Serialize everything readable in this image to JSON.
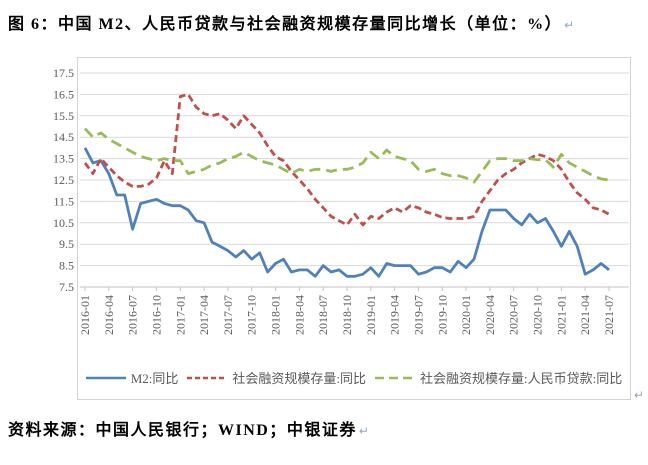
{
  "title": "图 6：中国 M2、人民币贷款与社会融资规模存量同比增长（单位：%）",
  "paragraph_mark": "↵",
  "source_note": "资料来源：中国人民银行；WIND；中银证券",
  "colors": {
    "m2_line": "#4F81BD",
    "tsf_line": "#C0504D",
    "loans_line": "#9BBB59",
    "gridline": "#D9D9D9",
    "axis_text": "#595959",
    "chart_border": "#D3D3D3"
  },
  "chart_data": {
    "type": "line",
    "title": "",
    "xlabel": "",
    "ylabel": "",
    "ylim": [
      7.5,
      17.5
    ],
    "ytick_step": 1,
    "grid": "horizontal",
    "legend_position": "bottom",
    "x": [
      "2016-01",
      "2016-02",
      "2016-03",
      "2016-04",
      "2016-05",
      "2016-06",
      "2016-07",
      "2016-08",
      "2016-09",
      "2016-10",
      "2016-11",
      "2016-12",
      "2017-01",
      "2017-02",
      "2017-03",
      "2017-04",
      "2017-05",
      "2017-06",
      "2017-07",
      "2017-08",
      "2017-09",
      "2017-10",
      "2017-11",
      "2017-12",
      "2018-01",
      "2018-02",
      "2018-03",
      "2018-04",
      "2018-05",
      "2018-06",
      "2018-07",
      "2018-08",
      "2018-09",
      "2018-10",
      "2018-11",
      "2018-12",
      "2019-01",
      "2019-02",
      "2019-03",
      "2019-04",
      "2019-05",
      "2019-06",
      "2019-07",
      "2019-08",
      "2019-09",
      "2019-10",
      "2019-11",
      "2019-12",
      "2020-01",
      "2020-02",
      "2020-03",
      "2020-04",
      "2020-05",
      "2020-06",
      "2020-07",
      "2020-08",
      "2020-09",
      "2020-10",
      "2020-11",
      "2020-12",
      "2021-01",
      "2021-02",
      "2021-03",
      "2021-04",
      "2021-05",
      "2021-06",
      "2021-07"
    ],
    "x_tick_labels": [
      "2016-01",
      "2016-04",
      "2016-07",
      "2016-10",
      "2017-01",
      "2017-04",
      "2017-07",
      "2017-10",
      "2018-01",
      "2018-04",
      "2018-07",
      "2018-10",
      "2019-01",
      "2019-04",
      "2019-07",
      "2019-10",
      "2020-01",
      "2020-04",
      "2020-07",
      "2020-10",
      "2021-01",
      "2021-04",
      "2021-07"
    ],
    "x_tick_every": 3,
    "series": [
      {
        "name": "M2:同比",
        "color": "#4F81BD",
        "style": "solid",
        "values": [
          14.0,
          13.3,
          13.4,
          12.8,
          11.8,
          11.8,
          10.2,
          11.4,
          11.5,
          11.6,
          11.4,
          11.3,
          11.3,
          11.1,
          10.6,
          10.5,
          9.6,
          9.4,
          9.2,
          8.9,
          9.2,
          8.8,
          9.1,
          8.2,
          8.6,
          8.8,
          8.2,
          8.3,
          8.3,
          8.0,
          8.5,
          8.2,
          8.3,
          8.0,
          8.0,
          8.1,
          8.4,
          8.0,
          8.6,
          8.5,
          8.5,
          8.5,
          8.1,
          8.2,
          8.4,
          8.4,
          8.2,
          8.7,
          8.4,
          8.8,
          10.1,
          11.1,
          11.1,
          11.1,
          10.7,
          10.4,
          10.9,
          10.5,
          10.7,
          10.1,
          9.4,
          10.1,
          9.4,
          8.1,
          8.3,
          8.6,
          8.3
        ]
      },
      {
        "name": "社会融资规模存量:同比",
        "color": "#C0504D",
        "style": "dashed",
        "values": [
          13.3,
          12.8,
          13.5,
          13.1,
          12.7,
          12.4,
          12.2,
          12.2,
          12.3,
          12.6,
          13.4,
          12.8,
          16.4,
          16.5,
          15.9,
          15.6,
          15.5,
          15.6,
          15.3,
          14.9,
          15.5,
          15.1,
          14.7,
          14.1,
          13.6,
          13.4,
          12.9,
          12.5,
          12.1,
          11.6,
          11.2,
          10.8,
          10.6,
          10.4,
          10.9,
          10.4,
          10.8,
          10.7,
          11.0,
          11.2,
          11.0,
          11.3,
          11.2,
          11.0,
          10.9,
          10.75,
          10.7,
          10.7,
          10.7,
          10.8,
          11.5,
          12.0,
          12.5,
          12.8,
          13.0,
          13.3,
          13.5,
          13.7,
          13.6,
          13.4,
          13.0,
          12.4,
          11.9,
          11.6,
          11.2,
          11.1,
          10.9
        ]
      },
      {
        "name": "社会融资规模存量:人民币贷款:同比",
        "color": "#9BBB59",
        "style": "long-dashed",
        "values": [
          14.9,
          14.5,
          14.7,
          14.4,
          14.2,
          14.0,
          13.8,
          13.6,
          13.5,
          13.4,
          13.5,
          13.4,
          13.4,
          12.8,
          12.9,
          13.0,
          13.2,
          13.3,
          13.5,
          13.6,
          13.8,
          13.6,
          13.4,
          13.3,
          13.2,
          13.0,
          12.8,
          13.0,
          12.9,
          13.0,
          13.0,
          12.9,
          13.0,
          13.0,
          13.1,
          13.3,
          13.8,
          13.5,
          13.9,
          13.6,
          13.5,
          13.4,
          13.0,
          12.9,
          13.0,
          12.8,
          12.7,
          12.7,
          12.6,
          12.4,
          12.9,
          13.4,
          13.5,
          13.5,
          13.4,
          13.4,
          13.5,
          13.45,
          13.45,
          13.1,
          13.7,
          13.3,
          13.1,
          12.9,
          12.7,
          12.55,
          12.5
        ]
      }
    ]
  }
}
